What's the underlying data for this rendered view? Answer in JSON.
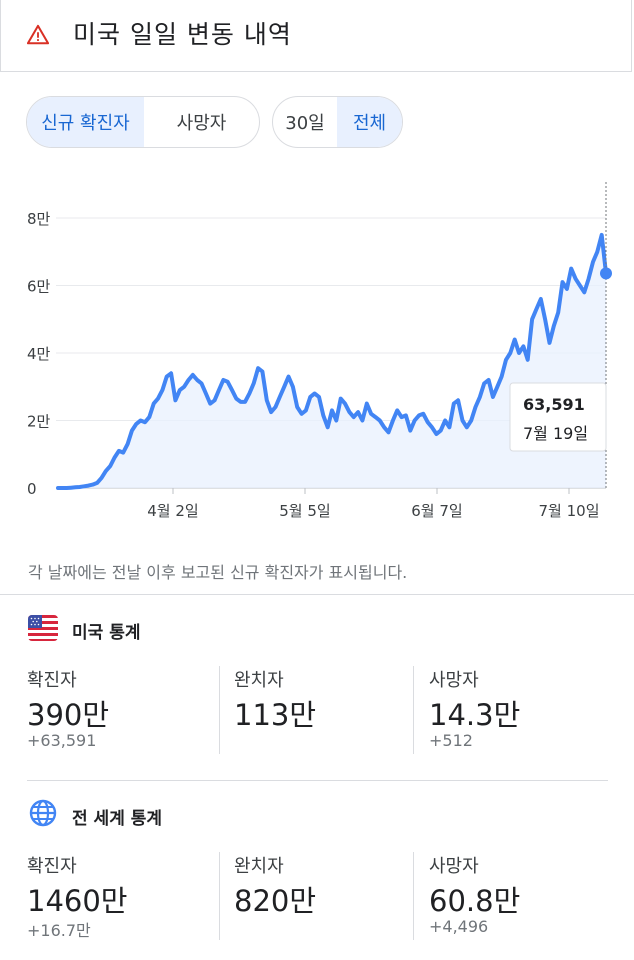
{
  "header": {
    "title": "미국 일일 변동 내역",
    "icon": "warning-icon"
  },
  "toggle_metric": {
    "options": [
      "신규 확진자",
      "사망자"
    ],
    "active": 0
  },
  "toggle_range": {
    "options": [
      "30일",
      "전체"
    ],
    "active": 1
  },
  "chart_data": {
    "type": "area",
    "y_ticks": [
      "8만",
      "6만",
      "4만",
      "2만",
      "0"
    ],
    "y_tick_values": [
      80000,
      60000,
      40000,
      20000,
      0
    ],
    "x_ticks": [
      "4월 2일",
      "5월 5일",
      "6월 7일",
      "7월 10일"
    ],
    "ylim": [
      0,
      80000
    ],
    "grid": true,
    "colors": {
      "line": "#4285f4",
      "fill": "#e8f0fe"
    },
    "series": [
      {
        "values": [
          0,
          0,
          0,
          100,
          200,
          300,
          500,
          700,
          1000,
          1500,
          3000,
          5000,
          6500,
          9000,
          11000,
          10500,
          13000,
          17000,
          19000,
          20000,
          19500,
          21000,
          25000,
          26500,
          29000,
          33000,
          34000,
          26000,
          29000,
          30000,
          32000,
          33500,
          32000,
          31000,
          28000,
          25000,
          26000,
          29000,
          32000,
          31500,
          29000,
          26500,
          25500,
          25500,
          28000,
          31000,
          35500,
          34500,
          26000,
          22500,
          24000,
          27000,
          30000,
          33000,
          30000,
          24000,
          22000,
          23000,
          27000,
          28000,
          27000,
          21500,
          18000,
          23000,
          20000,
          26500,
          25000,
          22500,
          21000,
          22500,
          20000,
          25000,
          22000,
          21000,
          20000,
          18000,
          16500,
          20000,
          23000,
          21000,
          21500,
          17000,
          20000,
          21500,
          22000,
          19500,
          18000,
          16000,
          17000,
          20000,
          18000,
          25000,
          26000,
          20000,
          18000,
          20000,
          24000,
          27000,
          31000,
          32000,
          27000,
          30000,
          33000,
          38000,
          40000,
          44000,
          40000,
          42000,
          38000,
          50000,
          53000,
          56000,
          50000,
          43000,
          48000,
          52000,
          61000,
          59000,
          65000,
          62000,
          60000,
          58000,
          62000,
          67000,
          70000,
          75000,
          63591
        ]
      }
    ],
    "tooltip": {
      "value": "63,591",
      "date": "7월 19일"
    }
  },
  "note": "각 날짜에는 전날 이후 보고된 신규 확진자가 표시됩니다.",
  "us_stats": {
    "title": "미국 통계",
    "icon": "us-flag-icon",
    "items": [
      {
        "label": "확진자",
        "value": "390만",
        "delta": "+63,591"
      },
      {
        "label": "완치자",
        "value": "113만",
        "delta": ""
      },
      {
        "label": "사망자",
        "value": "14.3만",
        "delta": "+512"
      }
    ]
  },
  "world_stats": {
    "title": "전 세계 통계",
    "icon": "globe-icon",
    "items": [
      {
        "label": "확진자",
        "value": "1460만",
        "delta": "+16.7만"
      },
      {
        "label": "완치자",
        "value": "820만",
        "delta": ""
      },
      {
        "label": "사망자",
        "value": "60.8만",
        "delta": "+4,496"
      }
    ]
  }
}
